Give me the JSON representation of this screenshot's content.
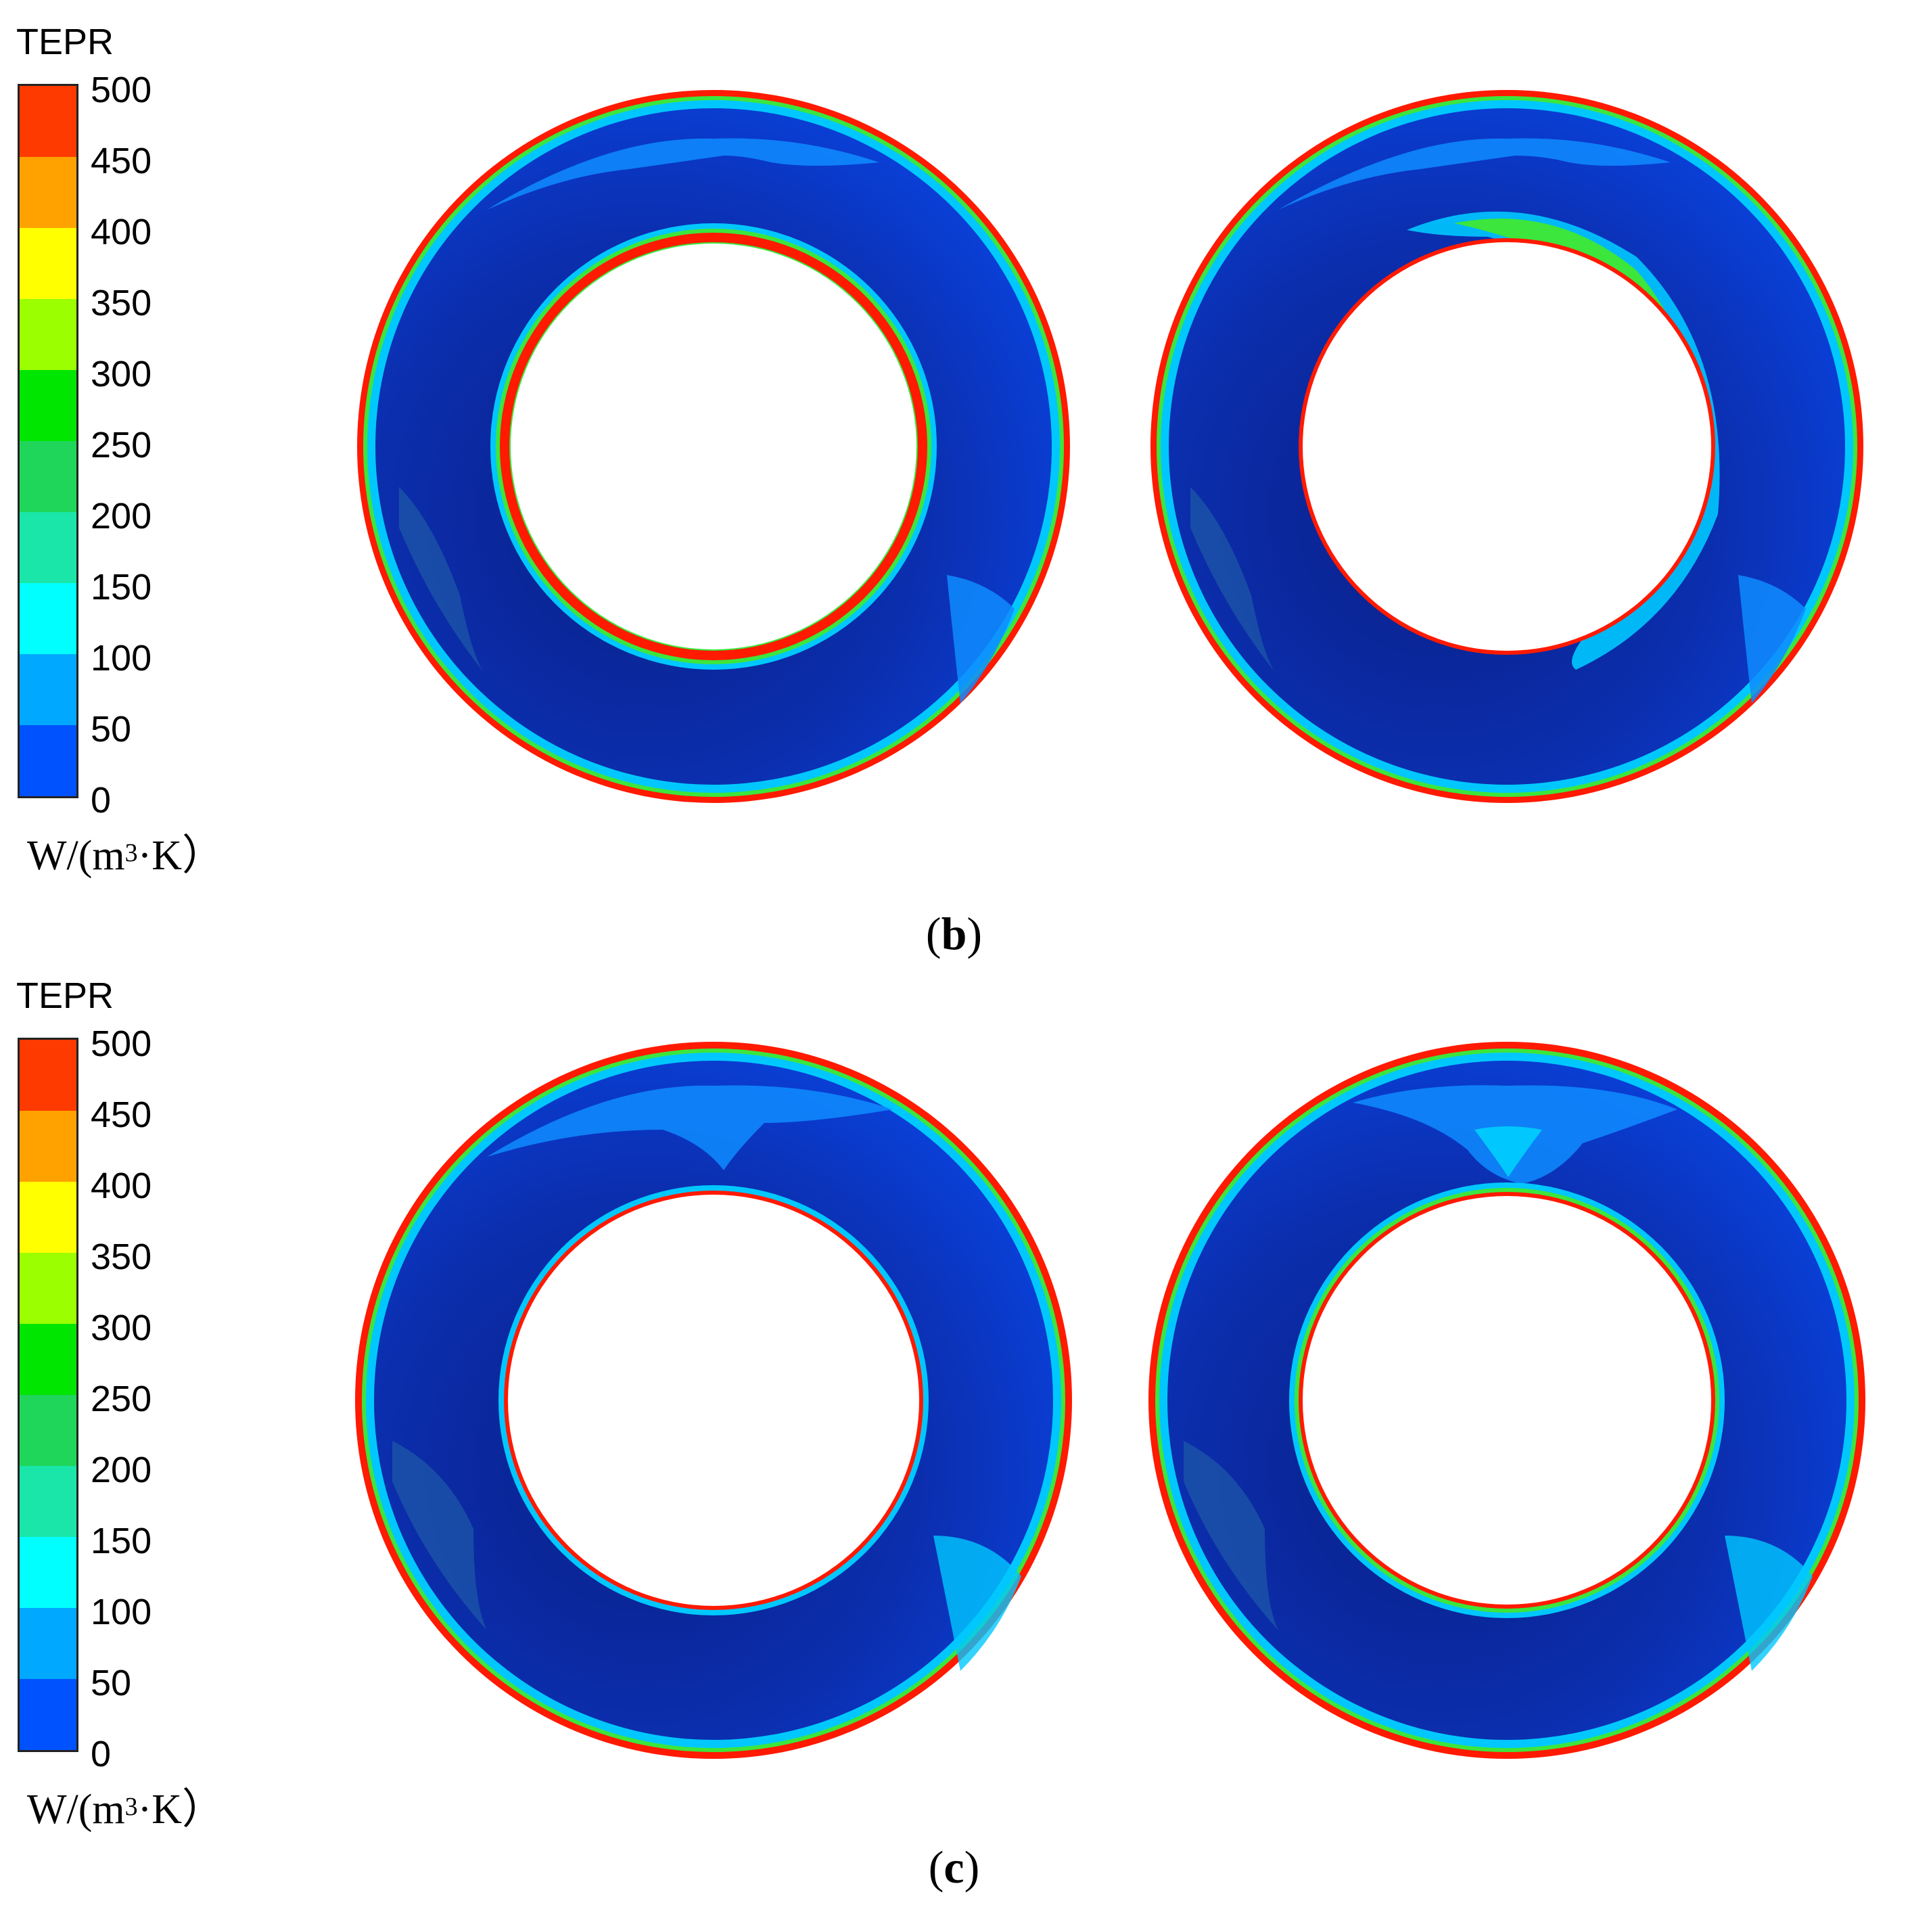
{
  "panels": [
    {
      "label_open": "(",
      "label_letter": "b",
      "label_close": ")",
      "colorbar": {
        "title": "TEPR",
        "unit_prefix": "W/(m",
        "unit_sup": "3",
        "unit_suffix": "·K）",
        "ticks": [
          "500",
          "450",
          "400",
          "350",
          "300",
          "250",
          "200",
          "150",
          "100",
          "50",
          "0"
        ]
      }
    },
    {
      "label_open": "(",
      "label_letter": "c",
      "label_close": ")",
      "colorbar": {
        "title": "TEPR",
        "unit_prefix": "W/(m",
        "unit_sup": "3",
        "unit_suffix": "·K）",
        "ticks": [
          "500",
          "450",
          "400",
          "350",
          "300",
          "250",
          "200",
          "150",
          "100",
          "50",
          "0"
        ]
      }
    }
  ],
  "colorbar_colors": [
    "#ff3a00",
    "#ffa200",
    "#ffff00",
    "#9bff00",
    "#00e600",
    "#1fd65a",
    "#19e6a8",
    "#00ffff",
    "#00a8ff",
    "#0052ff"
  ],
  "ring_colors": {
    "background_dark": "#0a1f85",
    "background_mid": "#0a3ed8",
    "rim_red": "#ff1a00",
    "cyan": "#00c8ff",
    "light_blue": "#0f8cff",
    "green": "#3ce63c",
    "yellow": "#ffff33"
  }
}
